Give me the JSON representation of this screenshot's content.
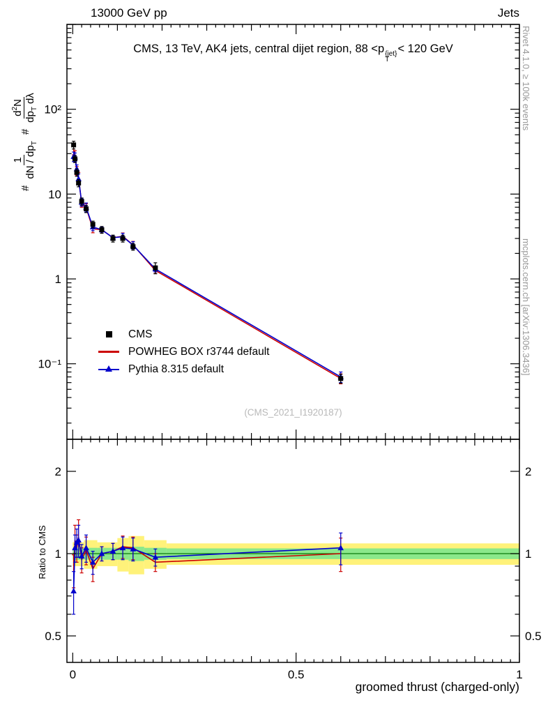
{
  "colors": {
    "cms": "#000000",
    "powheg": "#cc0000",
    "pythia": "#0000cc",
    "band_outer": "#fff27a",
    "band_inner": "#8be88b",
    "ref_line": "#0a7a0a",
    "watermark": "#b9b9b9",
    "side_text": "#999999"
  },
  "header": {
    "left": "13000 GeV pp",
    "right": "Jets"
  },
  "title": {
    "pre": "CMS, 13 TeV, AK4 jets, central dijet region, 88 <p",
    "sup": "{jet}",
    "sub": "T",
    "post": "< 120 GeV"
  },
  "ylabel": {
    "hash1": "#",
    "f1num": "1",
    "f1den_pre": "dN / dp",
    "f1den_sub": "T",
    "hash2": "#",
    "f2num_pre": "d",
    "f2num_sup": "2",
    "f2num_post": "N",
    "f2den_pre": "dp",
    "f2den_sub": "T",
    "f2den_post": "dλ"
  },
  "right_column": {
    "top": "Rivet 4.1.0, ≥ 100k events",
    "bottom": "mcplots.cern.ch [arXiv:1306.3436]"
  },
  "watermark": "(CMS_2021_I1920187)",
  "legend": [
    {
      "label": "CMS",
      "marker": "square"
    },
    {
      "label": "POWHEG BOX r3744 default",
      "marker": "line"
    },
    {
      "label": "Pythia 8.315 default",
      "marker": "triangle-line"
    }
  ],
  "ratio_ylabel": "Ratio to CMS",
  "xlabel": "groomed thrust (charged-only)",
  "chart_data": [
    {
      "type": "line",
      "panel": "main",
      "title": "CMS, 13 TeV, AK4 jets, central dijet region, 88 <p_T^{jet}< 120 GeV",
      "ylabel": "# 1/(dN/dp_T) d²N/(dp_T dλ)",
      "xlabel": "groomed thrust (charged-only)",
      "yscale": "log",
      "xlim": [
        0,
        1
      ],
      "ylim_exp": [
        -1.89,
        3.0
      ],
      "legend_position": "left-middle",
      "x_ticks": [
        {
          "v": 0,
          "label": "0"
        },
        {
          "v": 0.5,
          "label": "0.5"
        },
        {
          "v": 1,
          "label": "1"
        }
      ],
      "y_ticks": [
        {
          "v": 0.1,
          "label": "10⁻¹"
        },
        {
          "v": 1,
          "label": "1"
        },
        {
          "v": 10,
          "label": "10"
        },
        {
          "v": 100,
          "label": "10²"
        }
      ],
      "series": [
        {
          "name": "POWHEG BOX r3744 default",
          "color": "#cc0000",
          "line": true,
          "marker": "none",
          "x": [
            0.002,
            0.005,
            0.009,
            0.013,
            0.02,
            0.03,
            0.045,
            0.065,
            0.09,
            0.112,
            0.135,
            0.185,
            0.6
          ],
          "y": [
            33,
            29,
            18.9,
            15.5,
            7.8,
            6.9,
            3.9,
            3.8,
            3.06,
            3.18,
            2.52,
            1.26,
            0.067
          ],
          "yerr": [
            4,
            3.5,
            2.2,
            2.5,
            0.8,
            0.8,
            0.4,
            0.25,
            0.2,
            0.3,
            0.25,
            0.1,
            0.009
          ]
        },
        {
          "name": "Pythia 8.315 default",
          "color": "#0000cc",
          "line": true,
          "marker": "triangle",
          "x": [
            0.002,
            0.005,
            0.009,
            0.013,
            0.02,
            0.03,
            0.045,
            0.065,
            0.09,
            0.112,
            0.135,
            0.185,
            0.6
          ],
          "y": [
            27.7,
            27.3,
            19.8,
            15.1,
            8.0,
            7.0,
            4.1,
            3.8,
            3.06,
            3.15,
            2.5,
            1.31,
            0.07
          ],
          "yerr": [
            3.6,
            3.2,
            2.3,
            2.2,
            0.8,
            0.85,
            0.4,
            0.25,
            0.2,
            0.3,
            0.25,
            0.1,
            0.01
          ]
        },
        {
          "name": "CMS",
          "color": "#000000",
          "line": false,
          "marker": "square",
          "x": [
            0.002,
            0.005,
            0.009,
            0.013,
            0.02,
            0.03,
            0.045,
            0.065,
            0.09,
            0.112,
            0.135,
            0.185,
            0.6
          ],
          "y": [
            38,
            26,
            18,
            13.5,
            8.2,
            6.7,
            4.4,
            3.8,
            3.0,
            3.0,
            2.4,
            1.35,
            0.067
          ],
          "yerr": [
            4,
            2.5,
            1.8,
            1.3,
            0.8,
            0.65,
            0.4,
            0.35,
            0.28,
            0.28,
            0.22,
            0.2,
            0.008
          ]
        }
      ]
    },
    {
      "type": "ratio",
      "panel": "ratio",
      "ylabel": "Ratio to CMS",
      "yscale": "log",
      "ylim": [
        0.4,
        2.62
      ],
      "ref_value": 1,
      "y_ticks": [
        {
          "v": 0.5,
          "label": "0.5"
        },
        {
          "v": 1,
          "label": "1"
        },
        {
          "v": 2,
          "label": "2"
        }
      ],
      "y_minor": [
        0.6,
        0.7,
        0.8,
        0.9
      ],
      "band_segments": [
        {
          "x0": 0,
          "x1": 0.025,
          "outer": 0.1,
          "inner": 0.05
        },
        {
          "x0": 0.025,
          "x1": 0.055,
          "outer": 0.12,
          "inner": 0.05
        },
        {
          "x0": 0.055,
          "x1": 0.1,
          "outer": 0.1,
          "inner": 0.05
        },
        {
          "x0": 0.1,
          "x1": 0.125,
          "outer": 0.14,
          "inner": 0.05
        },
        {
          "x0": 0.125,
          "x1": 0.16,
          "outer": 0.16,
          "inner": 0.06
        },
        {
          "x0": 0.16,
          "x1": 0.21,
          "outer": 0.12,
          "inner": 0.05
        },
        {
          "x0": 0.21,
          "x1": 1.0,
          "outer": 0.09,
          "inner": 0.045
        }
      ],
      "series": [
        {
          "name": "POWHEG BOX r3744 default",
          "color": "#cc0000",
          "line": true,
          "marker": "none",
          "x": [
            0.002,
            0.005,
            0.009,
            0.013,
            0.02,
            0.03,
            0.045,
            0.065,
            0.09,
            0.112,
            0.135,
            0.185,
            0.6
          ],
          "y": [
            0.87,
            1.12,
            1.05,
            1.15,
            0.95,
            1.03,
            0.88,
            1.0,
            1.02,
            1.06,
            1.05,
            0.93,
            1.0
          ],
          "yerr": [
            0.12,
            0.15,
            0.12,
            0.18,
            0.1,
            0.12,
            0.09,
            0.06,
            0.07,
            0.1,
            0.1,
            0.07,
            0.14
          ]
        },
        {
          "name": "Pythia 8.315 default",
          "color": "#0000cc",
          "line": true,
          "marker": "triangle",
          "x": [
            0.002,
            0.005,
            0.009,
            0.013,
            0.02,
            0.03,
            0.045,
            0.065,
            0.09,
            0.112,
            0.135,
            0.185,
            0.6
          ],
          "y": [
            0.73,
            1.05,
            1.1,
            1.12,
            0.98,
            1.05,
            0.93,
            1.0,
            1.02,
            1.05,
            1.04,
            0.97,
            1.05
          ],
          "yerr": [
            0.13,
            0.12,
            0.13,
            0.15,
            0.1,
            0.12,
            0.09,
            0.06,
            0.07,
            0.1,
            0.1,
            0.07,
            0.14
          ]
        }
      ]
    }
  ]
}
